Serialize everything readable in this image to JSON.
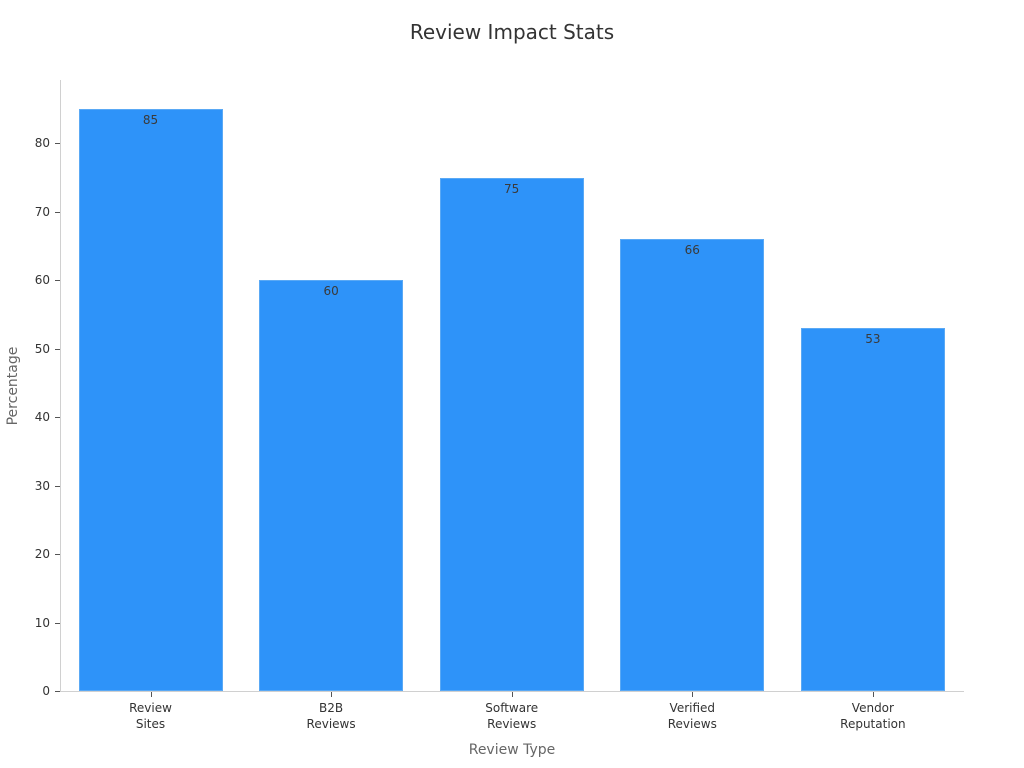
{
  "chart_data": {
    "type": "bar",
    "title": "Review Impact Stats",
    "xlabel": "Review Type",
    "ylabel": "Percentage",
    "categories": [
      "Review Sites",
      "B2B Reviews",
      "Software Reviews",
      "Verified Reviews",
      "Vendor Reputation"
    ],
    "category_lines": [
      [
        "Review",
        "Sites"
      ],
      [
        "B2B",
        "Reviews"
      ],
      [
        "Software",
        "Reviews"
      ],
      [
        "Verified",
        "Reviews"
      ],
      [
        "Vendor",
        "Reputation"
      ]
    ],
    "values": [
      85,
      60,
      75,
      66,
      53
    ],
    "value_labels": [
      "85",
      "60",
      "75",
      "66",
      "53"
    ],
    "yticks": [
      "0",
      "10",
      "20",
      "30",
      "40",
      "50",
      "60",
      "70",
      "80"
    ],
    "ylim": [
      0,
      89.25
    ],
    "grid": false,
    "legend": null,
    "bar_color": "#2e93f9"
  }
}
